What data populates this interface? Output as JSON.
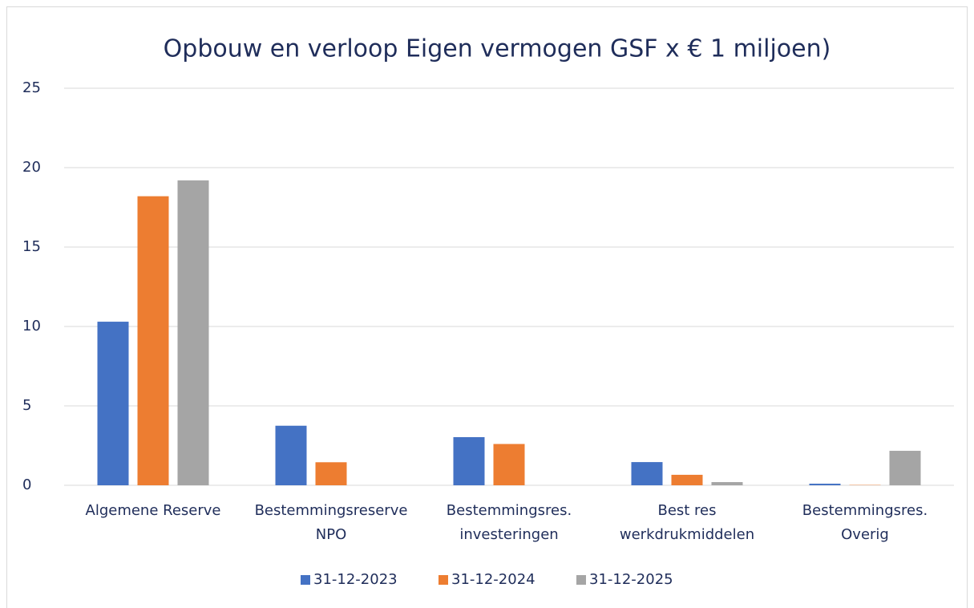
{
  "chart_data": {
    "type": "bar",
    "title": "Opbouw en verloop Eigen vermogen GSF x € 1 miljoen)",
    "categories": [
      [
        "Algemene Reserve"
      ],
      [
        "Bestemmingsreserve",
        "NPO"
      ],
      [
        "Bestemmingsres.",
        "investeringen"
      ],
      [
        "Best res",
        "werkdrukmiddelen"
      ],
      [
        "Bestemmingsres.",
        "Overig"
      ]
    ],
    "series": [
      {
        "name": "31-12-2023",
        "color": "#4472c4",
        "values": [
          10.3,
          3.75,
          3.03,
          1.46,
          0.1
        ]
      },
      {
        "name": "31-12-2024",
        "color": "#ed7d31",
        "values": [
          18.2,
          1.45,
          2.6,
          0.66,
          0.02
        ]
      },
      {
        "name": "31-12-2025",
        "color": "#a5a5a5",
        "values": [
          19.2,
          0,
          0,
          0.2,
          2.17
        ]
      }
    ],
    "ylim": [
      0,
      25
    ],
    "yticks": [
      0,
      5,
      10,
      15,
      20,
      25
    ],
    "grid": true,
    "legend": "bottom"
  }
}
